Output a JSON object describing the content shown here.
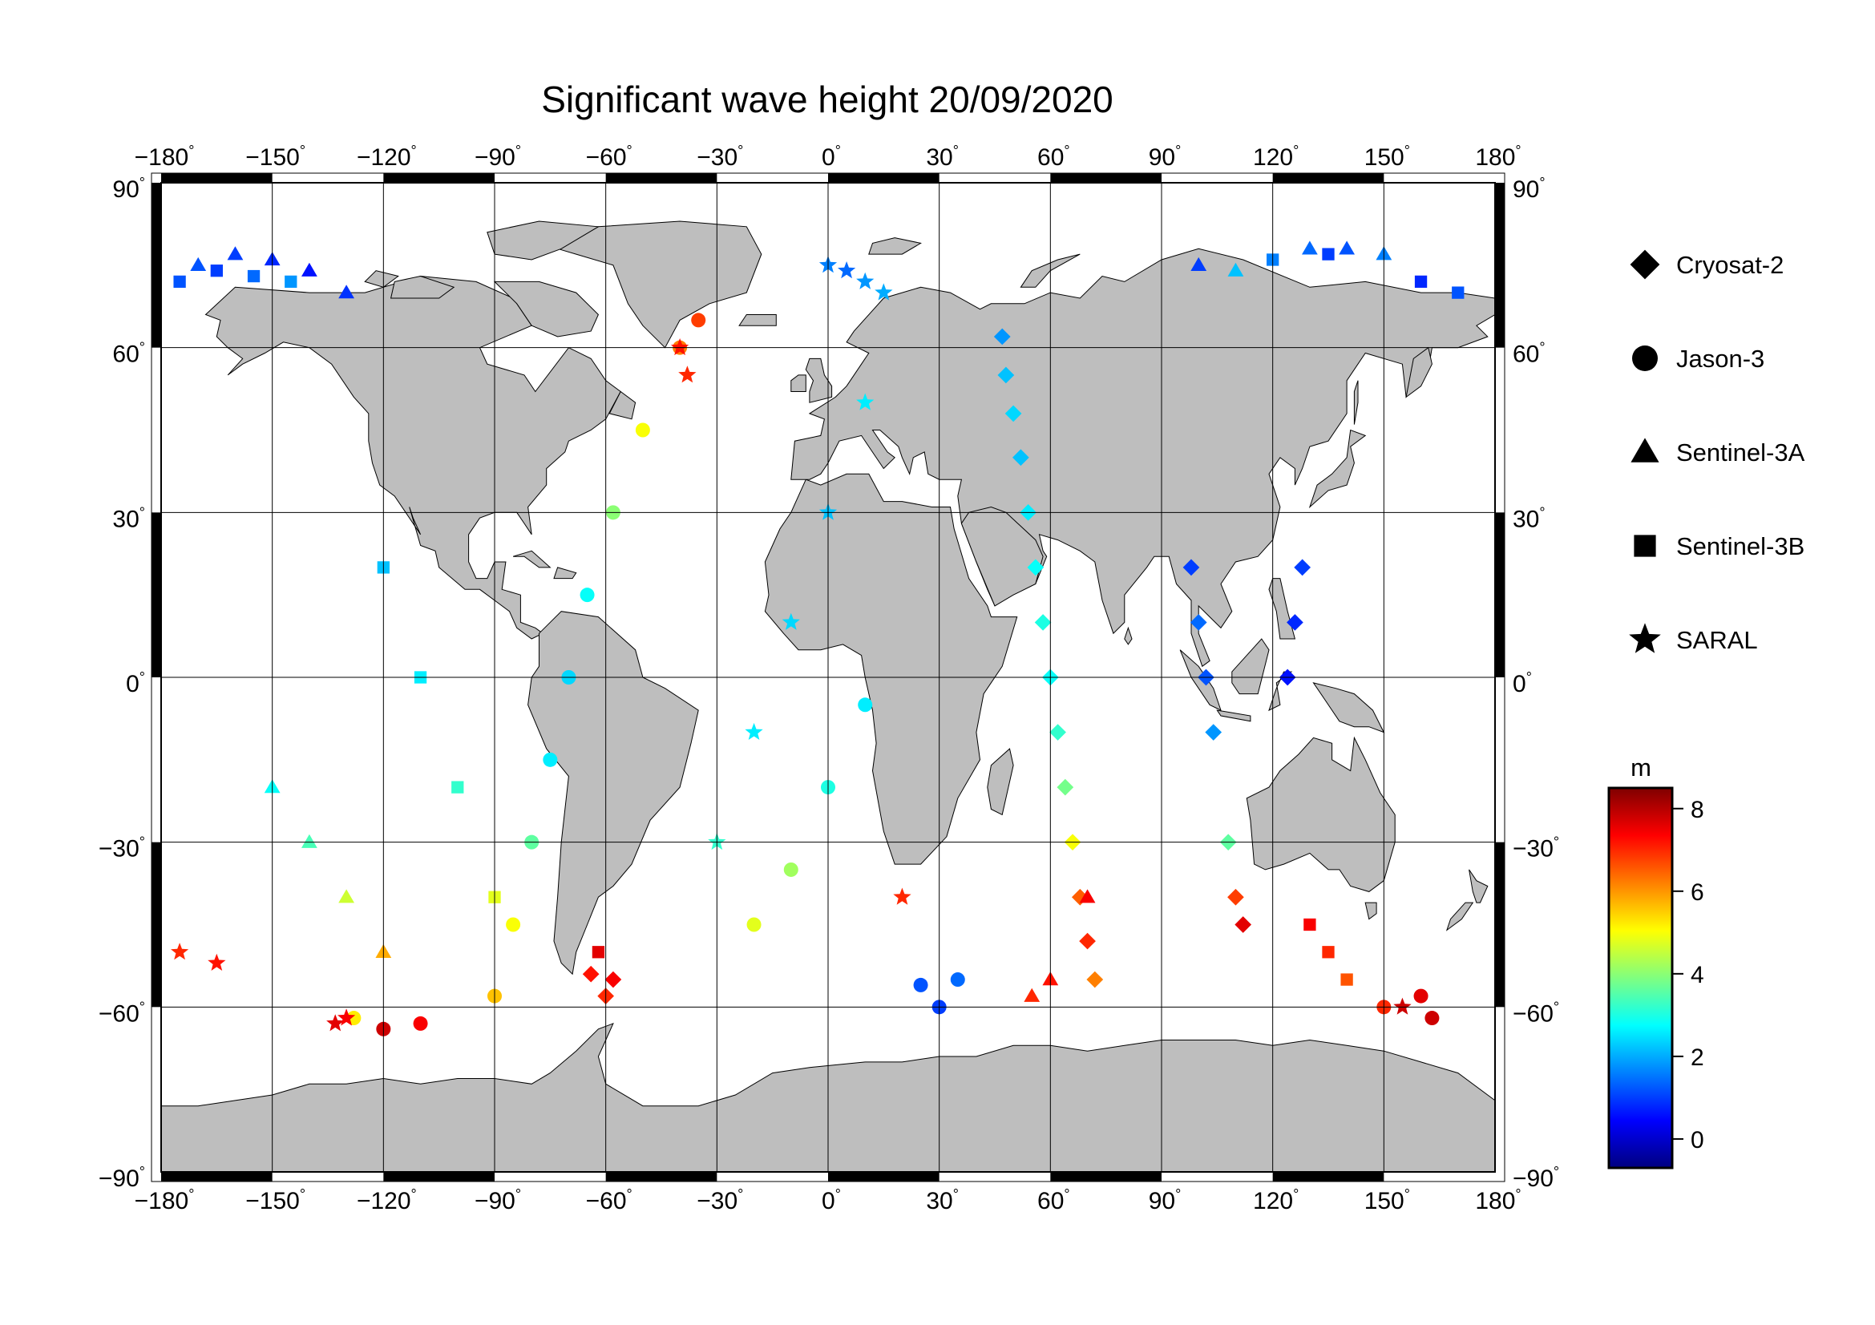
{
  "title": "Significant wave height 20/09/2020",
  "axes": {
    "x_ticks": [
      -180,
      -150,
      -120,
      -90,
      -60,
      -30,
      0,
      30,
      60,
      90,
      120,
      150,
      180
    ],
    "y_ticks": [
      90,
      60,
      30,
      0,
      -30,
      -60,
      -90
    ],
    "xlim": [
      -180,
      180
    ],
    "ylim": [
      -90,
      90
    ],
    "degree_symbol": "°",
    "grid": true
  },
  "legend": {
    "placement": "right",
    "items": [
      {
        "label": "Cryosat-2",
        "marker": "diamond"
      },
      {
        "label": "Jason-3",
        "marker": "circle"
      },
      {
        "label": "Sentinel-3A",
        "marker": "triangle"
      },
      {
        "label": "Sentinel-3B",
        "marker": "square"
      },
      {
        "label": "SARAL",
        "marker": "star"
      }
    ]
  },
  "colorbar": {
    "unit": "m",
    "ticks": [
      8,
      6,
      4,
      2,
      0
    ],
    "range": [
      -0.7,
      8.5
    ],
    "colormap": "jet"
  },
  "colors": {
    "land": "#bebebe",
    "ocean": "#ffffff",
    "frame": "#000000",
    "grid": "#000000"
  },
  "chart_data": {
    "type": "scatter",
    "title": "Significant wave height 20/09/2020",
    "x_label": "",
    "y_label": "",
    "description_note": "",
    "series": [
      {
        "name": "Cryosat-2",
        "marker": "diamond",
        "points": [
          [
            47,
            62,
            1.8
          ],
          [
            48,
            55,
            2.2
          ],
          [
            50,
            48,
            2.4
          ],
          [
            52,
            40,
            2.2
          ],
          [
            54,
            30,
            2.6
          ],
          [
            56,
            20,
            2.8
          ],
          [
            58,
            10,
            3.0
          ],
          [
            60,
            0,
            2.8
          ],
          [
            62,
            -10,
            3.2
          ],
          [
            64,
            -20,
            3.8
          ],
          [
            66,
            -30,
            5.0
          ],
          [
            68,
            -40,
            6.5
          ],
          [
            70,
            -48,
            7.0
          ],
          [
            72,
            -55,
            6.2
          ],
          [
            -64,
            -54,
            7.2
          ],
          [
            -60,
            -58,
            7.0
          ],
          [
            -58,
            -55,
            7.4
          ],
          [
            112,
            -45,
            7.6
          ],
          [
            110,
            -40,
            6.8
          ],
          [
            108,
            -30,
            3.6
          ],
          [
            104,
            -10,
            1.8
          ],
          [
            102,
            0,
            1.2
          ],
          [
            100,
            10,
            1.4
          ],
          [
            98,
            20,
            1.0
          ],
          [
            128,
            20,
            1.0
          ],
          [
            126,
            10,
            0.8
          ],
          [
            124,
            0,
            0.6
          ]
        ]
      },
      {
        "name": "Jason-3",
        "marker": "circle",
        "points": [
          [
            -35,
            65,
            6.8
          ],
          [
            -40,
            60,
            6.2
          ],
          [
            -50,
            45,
            5.0
          ],
          [
            -58,
            30,
            4.0
          ],
          [
            -65,
            15,
            2.8
          ],
          [
            -70,
            0,
            2.4
          ],
          [
            -75,
            -15,
            2.6
          ],
          [
            -80,
            -30,
            3.6
          ],
          [
            -85,
            -45,
            5.0
          ],
          [
            -90,
            -58,
            5.6
          ],
          [
            -110,
            -63,
            7.4
          ],
          [
            -120,
            -64,
            7.8
          ],
          [
            -128,
            -62,
            5.2
          ],
          [
            25,
            -56,
            1.2
          ],
          [
            30,
            -60,
            1.0
          ],
          [
            35,
            -55,
            1.4
          ],
          [
            -20,
            -45,
            4.8
          ],
          [
            -10,
            -35,
            4.2
          ],
          [
            0,
            -20,
            3.0
          ],
          [
            10,
            -5,
            2.6
          ],
          [
            150,
            -60,
            7.0
          ],
          [
            160,
            -58,
            7.6
          ],
          [
            163,
            -62,
            7.8
          ]
        ]
      },
      {
        "name": "Sentinel-3A",
        "marker": "triangle",
        "points": [
          [
            -170,
            75,
            1.2
          ],
          [
            -160,
            77,
            1.0
          ],
          [
            -150,
            76,
            0.8
          ],
          [
            -140,
            74,
            0.6
          ],
          [
            -130,
            70,
            0.9
          ],
          [
            130,
            78,
            1.4
          ],
          [
            140,
            78,
            1.2
          ],
          [
            150,
            77,
            1.6
          ],
          [
            100,
            75,
            1.0
          ],
          [
            110,
            74,
            2.2
          ],
          [
            -150,
            -20,
            2.8
          ],
          [
            -140,
            -30,
            3.4
          ],
          [
            -130,
            -40,
            4.6
          ],
          [
            -120,
            -50,
            5.8
          ],
          [
            60,
            -55,
            7.2
          ],
          [
            55,
            -58,
            7.0
          ],
          [
            70,
            -40,
            7.4
          ]
        ]
      },
      {
        "name": "Sentinel-3B",
        "marker": "square",
        "points": [
          [
            -175,
            72,
            1.2
          ],
          [
            -165,
            74,
            1.0
          ],
          [
            -155,
            73,
            1.4
          ],
          [
            -145,
            72,
            1.8
          ],
          [
            120,
            76,
            1.6
          ],
          [
            135,
            77,
            1.0
          ],
          [
            160,
            72,
            0.8
          ],
          [
            170,
            70,
            1.2
          ],
          [
            -120,
            20,
            2.2
          ],
          [
            -110,
            0,
            2.6
          ],
          [
            -100,
            -20,
            3.2
          ],
          [
            -90,
            -40,
            4.8
          ],
          [
            130,
            -45,
            7.4
          ],
          [
            135,
            -50,
            7.0
          ],
          [
            140,
            -55,
            6.6
          ],
          [
            -62,
            -50,
            7.6
          ]
        ]
      },
      {
        "name": "SARAL",
        "marker": "star",
        "points": [
          [
            -175,
            -50,
            7.0
          ],
          [
            -165,
            -52,
            7.2
          ],
          [
            -133,
            -63,
            7.6
          ],
          [
            -130,
            -62,
            7.4
          ],
          [
            0,
            75,
            1.6
          ],
          [
            5,
            74,
            1.4
          ],
          [
            10,
            72,
            1.8
          ],
          [
            15,
            70,
            2.0
          ],
          [
            -40,
            60,
            7.2
          ],
          [
            -38,
            55,
            7.0
          ],
          [
            155,
            -60,
            7.8
          ],
          [
            20,
            -40,
            7.0
          ],
          [
            -30,
            -30,
            3.2
          ],
          [
            -20,
            -10,
            2.6
          ],
          [
            -10,
            10,
            2.4
          ],
          [
            0,
            30,
            2.2
          ],
          [
            10,
            50,
            2.6
          ]
        ]
      }
    ]
  }
}
